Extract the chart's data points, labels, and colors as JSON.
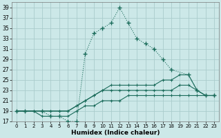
{
  "xlabel": "Humidex (Indice chaleur)",
  "background_color": "#cce8e8",
  "grid_color": "#aacccc",
  "line_color": "#1a6b5a",
  "xlim": [
    -0.5,
    23.5
  ],
  "ylim": [
    17,
    40
  ],
  "yticks": [
    17,
    19,
    21,
    23,
    25,
    27,
    29,
    31,
    33,
    35,
    37,
    39
  ],
  "xticks": [
    0,
    1,
    2,
    3,
    4,
    5,
    6,
    7,
    8,
    9,
    10,
    11,
    12,
    13,
    14,
    15,
    16,
    17,
    18,
    19,
    20,
    21,
    22,
    23
  ],
  "series": [
    {
      "x": [
        0,
        1,
        3,
        4,
        5,
        6,
        7,
        8,
        9,
        10,
        11,
        12,
        13,
        14,
        15,
        16,
        17,
        18,
        20,
        21,
        22,
        23
      ],
      "y": [
        19,
        19,
        19,
        18,
        18,
        17,
        17,
        30,
        34,
        35,
        36,
        39,
        36,
        33,
        32,
        31,
        29,
        27,
        26,
        23,
        22,
        22
      ]
    },
    {
      "x": [
        0,
        1,
        2,
        3,
        4,
        5,
        6,
        7,
        8,
        9,
        10,
        11,
        12,
        13,
        14,
        15,
        16,
        17,
        18,
        19,
        20,
        21,
        22,
        23
      ],
      "y": [
        19,
        19,
        19,
        18,
        18,
        18,
        18,
        19,
        20,
        20,
        21,
        21,
        21,
        22,
        22,
        22,
        22,
        22,
        22,
        22,
        22,
        22,
        22,
        22
      ]
    },
    {
      "x": [
        0,
        1,
        2,
        3,
        4,
        5,
        6,
        7,
        8,
        9,
        10,
        11,
        12,
        13,
        14,
        15,
        16,
        17,
        18,
        19,
        20,
        21,
        22,
        23
      ],
      "y": [
        19,
        19,
        19,
        19,
        19,
        19,
        19,
        20,
        21,
        22,
        23,
        23,
        23,
        23,
        23,
        23,
        23,
        23,
        23,
        24,
        24,
        23,
        22,
        22
      ]
    },
    {
      "x": [
        0,
        1,
        2,
        3,
        4,
        5,
        6,
        7,
        8,
        9,
        10,
        11,
        12,
        13,
        14,
        15,
        16,
        17,
        18,
        19,
        20,
        21,
        22,
        23
      ],
      "y": [
        19,
        19,
        19,
        19,
        19,
        19,
        19,
        20,
        21,
        22,
        23,
        24,
        24,
        24,
        24,
        24,
        24,
        25,
        25,
        26,
        26,
        23,
        22,
        22
      ]
    }
  ]
}
